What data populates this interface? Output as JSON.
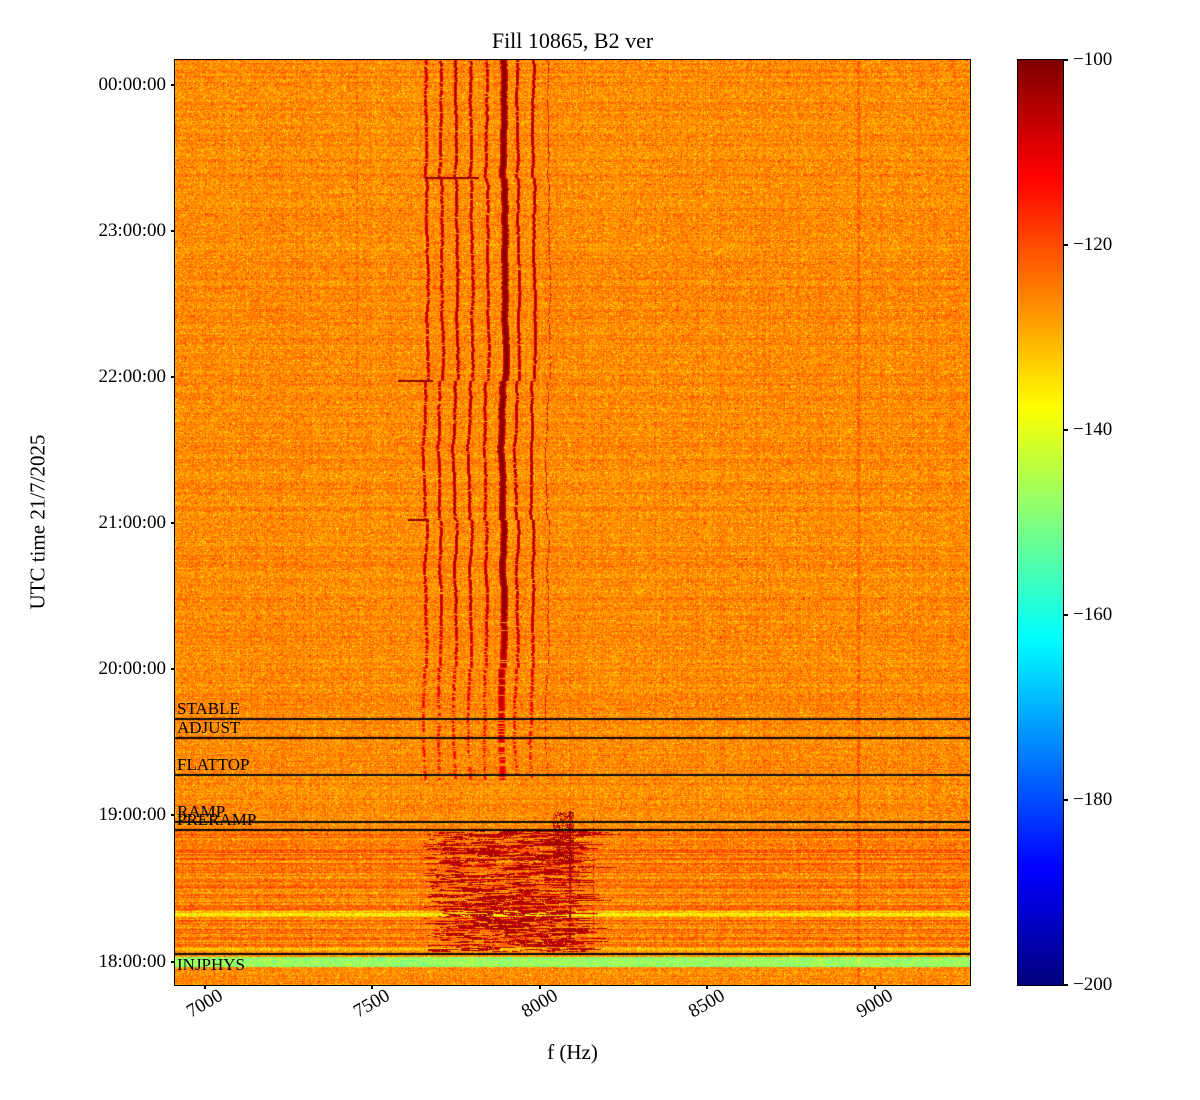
{
  "chart_data": {
    "type": "heatmap",
    "subtype": "spectrogram",
    "title": "Fill 10865, B2 ver",
    "xlabel": "f (Hz)",
    "ylabel": "UTC time 21/7/2025",
    "colormap": "jet",
    "x_range_hz": [
      6910,
      9285
    ],
    "x_ticks": [
      {
        "value": 7000,
        "label": "7000"
      },
      {
        "value": 7500,
        "label": "7500"
      },
      {
        "value": 8000,
        "label": "8000"
      },
      {
        "value": 8500,
        "label": "8500"
      },
      {
        "value": 9000,
        "label": "9000"
      }
    ],
    "y_range_hours": [
      17.84,
      24.17
    ],
    "y_ticks": [
      {
        "hour": 24,
        "label": "00:00:00"
      },
      {
        "hour": 23,
        "label": "23:00:00"
      },
      {
        "hour": 22,
        "label": "22:00:00"
      },
      {
        "hour": 21,
        "label": "21:00:00"
      },
      {
        "hour": 20,
        "label": "20:00:00"
      },
      {
        "hour": 19,
        "label": "19:00:00"
      },
      {
        "hour": 18,
        "label": "18:00:00"
      }
    ],
    "colorbar": {
      "min": -200,
      "max": -100,
      "ticks": [
        {
          "value": -100,
          "label": "−100"
        },
        {
          "value": -120,
          "label": "−120"
        },
        {
          "value": -140,
          "label": "−140"
        },
        {
          "value": -160,
          "label": "−160"
        },
        {
          "value": -180,
          "label": "−180"
        },
        {
          "value": -200,
          "label": "−200"
        }
      ]
    },
    "background_level_db": -126,
    "beam_modes": [
      {
        "label": "STABLE",
        "hour": 19.66,
        "start_time": "19:40"
      },
      {
        "label": "ADJUST",
        "hour": 19.53,
        "start_time": "19:32"
      },
      {
        "label": "FLATTOP",
        "hour": 19.28,
        "start_time": "19:17"
      },
      {
        "label": "RAMP",
        "hour": 18.955,
        "start_time": "18:57"
      },
      {
        "label": "PRERAMP",
        "hour": 18.9,
        "start_time": "18:54"
      },
      {
        "label": "INJPHYS",
        "hour": 18.05,
        "start_time": "18:03"
      }
    ],
    "spectral_lines_hz": [
      7659,
      7703,
      7748,
      7793,
      7840,
      7891,
      7932,
      7979,
      8024
    ],
    "spectral_lines_level_db": -102,
    "spectral_lines_visible_until_hour": 19.25,
    "injection_noise_band": {
      "hours": [
        18.05,
        18.9
      ],
      "f_low_hz": 7650,
      "f_high_hz": 8130,
      "level_db": -110
    },
    "vertical_trace_hz": 8090,
    "faint_line_hz": 8950,
    "low_power_band": {
      "hours": [
        17.97,
        18.03
      ],
      "level_db": -147
    }
  }
}
